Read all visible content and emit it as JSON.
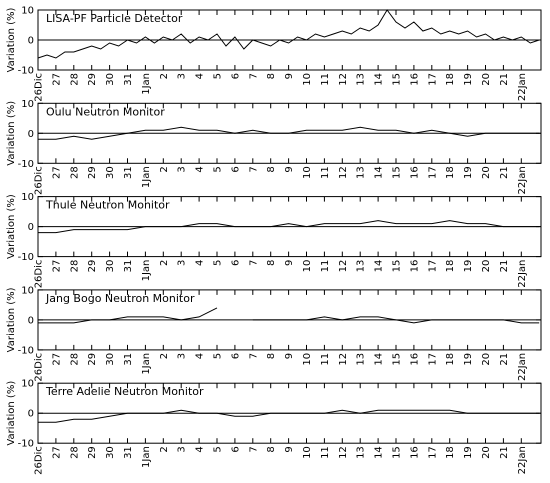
{
  "chart_data": [
    {
      "type": "line",
      "title": "LISA-PF Particle Detector",
      "ylabel": "Variation (%)",
      "color": "#000000",
      "xlim": [
        0,
        28.1
      ],
      "ylim": [
        -10,
        10
      ],
      "yticks": [
        -10,
        0,
        10
      ],
      "xticks": [
        {
          "value": 0,
          "label": "26Dic"
        },
        {
          "value": 1,
          "label": "27"
        },
        {
          "value": 2,
          "label": "28"
        },
        {
          "value": 3,
          "label": "29"
        },
        {
          "value": 4,
          "label": "30"
        },
        {
          "value": 5,
          "label": "31"
        },
        {
          "value": 6,
          "label": "1Jan"
        },
        {
          "value": 7,
          "label": "2"
        },
        {
          "value": 8,
          "label": "3"
        },
        {
          "value": 9,
          "label": "4"
        },
        {
          "value": 10,
          "label": "5"
        },
        {
          "value": 11,
          "label": "6"
        },
        {
          "value": 12,
          "label": "7"
        },
        {
          "value": 13,
          "label": "8"
        },
        {
          "value": 14,
          "label": "9"
        },
        {
          "value": 15,
          "label": "10"
        },
        {
          "value": 16,
          "label": "11"
        },
        {
          "value": 17,
          "label": "12"
        },
        {
          "value": 18,
          "label": "13"
        },
        {
          "value": 19,
          "label": "14"
        },
        {
          "value": 20,
          "label": "15"
        },
        {
          "value": 21,
          "label": "16"
        },
        {
          "value": 22,
          "label": "17"
        },
        {
          "value": 23,
          "label": "18"
        },
        {
          "value": 24,
          "label": "19"
        },
        {
          "value": 25,
          "label": "20"
        },
        {
          "value": 26,
          "label": "21"
        },
        {
          "value": 27,
          "label": "22Jan"
        }
      ],
      "x": [
        0,
        0.5,
        1,
        1.5,
        2,
        2.5,
        3,
        3.5,
        4,
        4.5,
        5,
        5.5,
        6,
        6.5,
        7,
        7.5,
        8,
        8.5,
        9,
        9.5,
        10,
        10.5,
        11,
        11.5,
        12,
        12.5,
        13,
        13.5,
        14,
        14.5,
        15,
        15.5,
        16,
        16.5,
        17,
        17.5,
        18,
        18.5,
        19,
        19.5,
        20,
        20.5,
        21,
        21.5,
        22,
        22.5,
        23,
        23.5,
        24,
        24.5,
        25,
        25.5,
        26,
        26.5,
        27,
        27.5,
        28
      ],
      "values": [
        -6,
        -5,
        -6,
        -4,
        -4,
        -3,
        -2,
        -3,
        -1,
        -2,
        0,
        -1,
        1,
        -1,
        1,
        0,
        2,
        -1,
        1,
        0,
        2,
        -2,
        1,
        -3,
        0,
        -1,
        -2,
        0,
        -1,
        1,
        0,
        2,
        1,
        2,
        3,
        2,
        4,
        3,
        5,
        10,
        6,
        4,
        6,
        3,
        4,
        2,
        3,
        2,
        3,
        1,
        2,
        0,
        1,
        0,
        1,
        -1,
        0
      ]
    },
    {
      "type": "line",
      "title": "Oulu Neutron Monitor",
      "ylabel": "Variation (%)",
      "color": "#000000",
      "xlim": [
        0,
        28.1
      ],
      "ylim": [
        -10,
        10
      ],
      "yticks": [
        -10,
        0,
        10
      ],
      "xticks": [
        {
          "value": 0,
          "label": "26Dic"
        },
        {
          "value": 1,
          "label": "27"
        },
        {
          "value": 2,
          "label": "28"
        },
        {
          "value": 3,
          "label": "29"
        },
        {
          "value": 4,
          "label": "30"
        },
        {
          "value": 5,
          "label": "31"
        },
        {
          "value": 6,
          "label": "1Jan"
        },
        {
          "value": 7,
          "label": "2"
        },
        {
          "value": 8,
          "label": "3"
        },
        {
          "value": 9,
          "label": "4"
        },
        {
          "value": 10,
          "label": "5"
        },
        {
          "value": 11,
          "label": "6"
        },
        {
          "value": 12,
          "label": "7"
        },
        {
          "value": 13,
          "label": "8"
        },
        {
          "value": 14,
          "label": "9"
        },
        {
          "value": 15,
          "label": "10"
        },
        {
          "value": 16,
          "label": "11"
        },
        {
          "value": 17,
          "label": "12"
        },
        {
          "value": 18,
          "label": "13"
        },
        {
          "value": 19,
          "label": "14"
        },
        {
          "value": 20,
          "label": "15"
        },
        {
          "value": 21,
          "label": "16"
        },
        {
          "value": 22,
          "label": "17"
        },
        {
          "value": 23,
          "label": "18"
        },
        {
          "value": 24,
          "label": "19"
        },
        {
          "value": 25,
          "label": "20"
        },
        {
          "value": 26,
          "label": "21"
        },
        {
          "value": 27,
          "label": "22Jan"
        }
      ],
      "x": [
        0,
        1,
        2,
        3,
        4,
        5,
        6,
        7,
        8,
        9,
        10,
        11,
        12,
        13,
        14,
        15,
        16,
        17,
        18,
        19,
        20,
        21,
        22,
        23,
        24,
        25,
        26,
        27,
        28
      ],
      "values": [
        -2,
        -2,
        -1,
        -2,
        -1,
        0,
        1,
        1,
        2,
        1,
        1,
        0,
        1,
        0,
        0,
        1,
        1,
        1,
        2,
        1,
        1,
        0,
        1,
        0,
        -1,
        0,
        0,
        0,
        0
      ]
    },
    {
      "type": "line",
      "title": "Thule Neutron Monitor",
      "ylabel": "Variation (%)",
      "color": "#000000",
      "xlim": [
        0,
        28.1
      ],
      "ylim": [
        -10,
        10
      ],
      "yticks": [
        -10,
        0,
        10
      ],
      "xticks": [
        {
          "value": 0,
          "label": "26Dic"
        },
        {
          "value": 1,
          "label": "27"
        },
        {
          "value": 2,
          "label": "28"
        },
        {
          "value": 3,
          "label": "29"
        },
        {
          "value": 4,
          "label": "30"
        },
        {
          "value": 5,
          "label": "31"
        },
        {
          "value": 6,
          "label": "1Jan"
        },
        {
          "value": 7,
          "label": "2"
        },
        {
          "value": 8,
          "label": "3"
        },
        {
          "value": 9,
          "label": "4"
        },
        {
          "value": 10,
          "label": "5"
        },
        {
          "value": 11,
          "label": "6"
        },
        {
          "value": 12,
          "label": "7"
        },
        {
          "value": 13,
          "label": "8"
        },
        {
          "value": 14,
          "label": "9"
        },
        {
          "value": 15,
          "label": "10"
        },
        {
          "value": 16,
          "label": "11"
        },
        {
          "value": 17,
          "label": "12"
        },
        {
          "value": 18,
          "label": "13"
        },
        {
          "value": 19,
          "label": "14"
        },
        {
          "value": 20,
          "label": "15"
        },
        {
          "value": 21,
          "label": "16"
        },
        {
          "value": 22,
          "label": "17"
        },
        {
          "value": 23,
          "label": "18"
        },
        {
          "value": 24,
          "label": "19"
        },
        {
          "value": 25,
          "label": "20"
        },
        {
          "value": 26,
          "label": "21"
        },
        {
          "value": 27,
          "label": "22Jan"
        }
      ],
      "x": [
        0,
        1,
        2,
        3,
        4,
        5,
        6,
        7,
        8,
        9,
        10,
        11,
        12,
        13,
        14,
        15,
        16,
        17,
        18,
        19,
        20,
        21,
        22,
        23,
        24,
        25,
        26,
        27,
        28
      ],
      "values": [
        -2,
        -2,
        -1,
        -1,
        -1,
        -1,
        0,
        0,
        0,
        1,
        1,
        0,
        0,
        0,
        1,
        0,
        1,
        1,
        1,
        2,
        1,
        1,
        1,
        2,
        1,
        1,
        0,
        0,
        0
      ]
    },
    {
      "type": "line",
      "title": "Jang Bogo Neutron Monitor",
      "ylabel": "Variation (%)",
      "color": "#000000",
      "xlim": [
        0,
        28.1
      ],
      "ylim": [
        -10,
        10
      ],
      "yticks": [
        -10,
        0,
        10
      ],
      "xticks": [
        {
          "value": 0,
          "label": "26Dic"
        },
        {
          "value": 1,
          "label": "27"
        },
        {
          "value": 2,
          "label": "28"
        },
        {
          "value": 3,
          "label": "29"
        },
        {
          "value": 4,
          "label": "30"
        },
        {
          "value": 5,
          "label": "31"
        },
        {
          "value": 6,
          "label": "1Jan"
        },
        {
          "value": 7,
          "label": "2"
        },
        {
          "value": 8,
          "label": "3"
        },
        {
          "value": 9,
          "label": "4"
        },
        {
          "value": 10,
          "label": "5"
        },
        {
          "value": 11,
          "label": "6"
        },
        {
          "value": 12,
          "label": "7"
        },
        {
          "value": 13,
          "label": "8"
        },
        {
          "value": 14,
          "label": "9"
        },
        {
          "value": 15,
          "label": "10"
        },
        {
          "value": 16,
          "label": "11"
        },
        {
          "value": 17,
          "label": "12"
        },
        {
          "value": 18,
          "label": "13"
        },
        {
          "value": 19,
          "label": "14"
        },
        {
          "value": 20,
          "label": "15"
        },
        {
          "value": 21,
          "label": "16"
        },
        {
          "value": 22,
          "label": "17"
        },
        {
          "value": 23,
          "label": "18"
        },
        {
          "value": 24,
          "label": "19"
        },
        {
          "value": 25,
          "label": "20"
        },
        {
          "value": 26,
          "label": "21"
        },
        {
          "value": 27,
          "label": "22Jan"
        }
      ],
      "x": [
        0,
        1,
        2,
        3,
        4,
        5,
        6,
        7,
        8,
        9,
        10,
        11,
        12,
        13,
        14,
        15,
        16,
        17,
        18,
        19,
        20,
        21,
        22,
        23,
        24,
        25,
        26,
        27,
        28
      ],
      "values": [
        -1,
        -1,
        -1,
        0,
        0,
        1,
        1,
        1,
        0,
        1,
        4,
        null,
        0,
        0,
        0,
        0,
        1,
        0,
        1,
        1,
        0,
        -1,
        0,
        0,
        0,
        0,
        0,
        -1,
        -1
      ]
    },
    {
      "type": "line",
      "title": "Terre Adelie Neutron Monitor",
      "ylabel": "Variation (%)",
      "color": "#000000",
      "xlim": [
        0,
        28.1
      ],
      "ylim": [
        -10,
        10
      ],
      "yticks": [
        -10,
        0,
        10
      ],
      "xticks": [
        {
          "value": 0,
          "label": "26Dic"
        },
        {
          "value": 1,
          "label": "27"
        },
        {
          "value": 2,
          "label": "28"
        },
        {
          "value": 3,
          "label": "29"
        },
        {
          "value": 4,
          "label": "30"
        },
        {
          "value": 5,
          "label": "31"
        },
        {
          "value": 6,
          "label": "1Jan"
        },
        {
          "value": 7,
          "label": "2"
        },
        {
          "value": 8,
          "label": "3"
        },
        {
          "value": 9,
          "label": "4"
        },
        {
          "value": 10,
          "label": "5"
        },
        {
          "value": 11,
          "label": "6"
        },
        {
          "value": 12,
          "label": "7"
        },
        {
          "value": 13,
          "label": "8"
        },
        {
          "value": 14,
          "label": "9"
        },
        {
          "value": 15,
          "label": "10"
        },
        {
          "value": 16,
          "label": "11"
        },
        {
          "value": 17,
          "label": "12"
        },
        {
          "value": 18,
          "label": "13"
        },
        {
          "value": 19,
          "label": "14"
        },
        {
          "value": 20,
          "label": "15"
        },
        {
          "value": 21,
          "label": "16"
        },
        {
          "value": 22,
          "label": "17"
        },
        {
          "value": 23,
          "label": "18"
        },
        {
          "value": 24,
          "label": "19"
        },
        {
          "value": 25,
          "label": "20"
        },
        {
          "value": 26,
          "label": "21"
        },
        {
          "value": 27,
          "label": "22Jan"
        }
      ],
      "x": [
        0,
        1,
        2,
        3,
        4,
        5,
        6,
        7,
        8,
        9,
        10,
        11,
        12,
        13,
        14,
        15,
        16,
        17,
        18,
        19,
        20,
        21,
        22,
        23,
        24,
        25,
        26,
        27,
        28
      ],
      "values": [
        -3,
        -3,
        -2,
        -2,
        -1,
        0,
        0,
        0,
        1,
        0,
        0,
        -1,
        -1,
        0,
        0,
        0,
        0,
        1,
        0,
        1,
        1,
        1,
        1,
        1,
        0,
        0,
        0,
        0,
        0
      ]
    }
  ]
}
